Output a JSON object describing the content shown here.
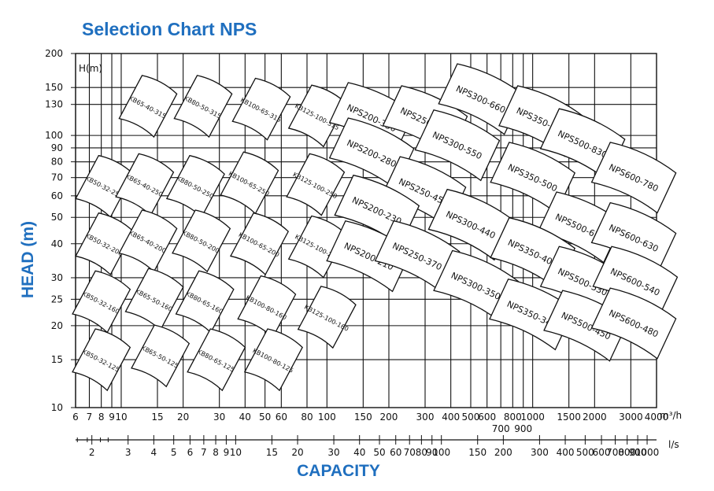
{
  "chart_data": {
    "type": "selection-chart",
    "title": "Selection Chart NPS",
    "ylabel": "HEAD (m)",
    "xlabel": "CAPACITY",
    "y_axis_unit_label": "H(m)",
    "x_unit_primary": "m³/h",
    "x_unit_secondary": "l/s",
    "y_scale": "log",
    "x_scale": "log",
    "ylim": [
      10,
      200
    ],
    "xlim_m3h": [
      6,
      4000
    ],
    "grid": true,
    "colors": {
      "title": "#1f6fbf",
      "lines": "#111111",
      "fill": "#ffffff"
    },
    "y_ticks": [
      {
        "label": "200",
        "value": 200
      },
      {
        "label": "150",
        "value": 150
      },
      {
        "label": "130",
        "value": 130
      },
      {
        "label": "100",
        "value": 100
      },
      {
        "label": "90",
        "value": 90
      },
      {
        "label": "80",
        "value": 80
      },
      {
        "label": "70",
        "value": 70
      },
      {
        "label": "60",
        "value": 60
      },
      {
        "label": "50",
        "value": 50
      },
      {
        "label": "40",
        "value": 40
      },
      {
        "label": "30",
        "value": 30
      },
      {
        "label": "25",
        "value": 25
      },
      {
        "label": "20",
        "value": 20
      },
      {
        "label": "15",
        "value": 15
      },
      {
        "label": "10",
        "value": 10
      }
    ],
    "x_ticks_m3h": [
      {
        "label": "6",
        "value": 6
      },
      {
        "label": "7",
        "value": 7
      },
      {
        "label": "8",
        "value": 8
      },
      {
        "label": "9",
        "value": 9
      },
      {
        "label": "10",
        "value": 10
      },
      {
        "label": "15",
        "value": 15
      },
      {
        "label": "20",
        "value": 20
      },
      {
        "label": "30",
        "value": 30
      },
      {
        "label": "40",
        "value": 40
      },
      {
        "label": "50",
        "value": 50
      },
      {
        "label": "60",
        "value": 60
      },
      {
        "label": "80",
        "value": 80
      },
      {
        "label": "100",
        "value": 100
      },
      {
        "label": "150",
        "value": 150
      },
      {
        "label": "200",
        "value": 200
      },
      {
        "label": "300",
        "value": 300
      },
      {
        "label": "400",
        "value": 400
      },
      {
        "label": "500",
        "value": 500
      },
      {
        "label": "600",
        "value": 600
      },
      {
        "label": "700",
        "value": 700,
        "low": true
      },
      {
        "label": "800",
        "value": 800
      },
      {
        "label": "900",
        "value": 900,
        "low": true
      },
      {
        "label": "1000",
        "value": 1000
      },
      {
        "label": "1500",
        "value": 1500
      },
      {
        "label": "2000",
        "value": 2000
      },
      {
        "label": "3000",
        "value": 3000
      },
      {
        "label": "4000",
        "value": 4000
      }
    ],
    "x_ticks_ls": [
      {
        "label": "2",
        "value": 2
      },
      {
        "label": "3",
        "value": 3
      },
      {
        "label": "4",
        "value": 4
      },
      {
        "label": "5",
        "value": 5
      },
      {
        "label": "6",
        "value": 6
      },
      {
        "label": "7",
        "value": 7
      },
      {
        "label": "8",
        "value": 8
      },
      {
        "label": "9",
        "value": 9
      },
      {
        "label": "10",
        "value": 10
      },
      {
        "label": "15",
        "value": 15
      },
      {
        "label": "20",
        "value": 20
      },
      {
        "label": "30",
        "value": 30
      },
      {
        "label": "40",
        "value": 40
      },
      {
        "label": "50",
        "value": 50
      },
      {
        "label": "60",
        "value": 60
      },
      {
        "label": "70",
        "value": 70
      },
      {
        "label": "80",
        "value": 80
      },
      {
        "label": "90",
        "value": 90
      },
      {
        "label": "100",
        "value": 100
      },
      {
        "label": "150",
        "value": 150
      },
      {
        "label": "200",
        "value": 200
      },
      {
        "label": "300",
        "value": 300
      },
      {
        "label": "400",
        "value": 400
      },
      {
        "label": "500",
        "value": 500
      },
      {
        "label": "600",
        "value": 600
      },
      {
        "label": "700",
        "value": 700
      },
      {
        "label": "800",
        "value": 800
      },
      {
        "label": "900",
        "value": 900
      },
      {
        "label": "1000",
        "value": 1000
      }
    ],
    "regions": [
      {
        "label": "KB65-40-315",
        "q": 13.5,
        "h": 128
      },
      {
        "label": "KB80-50-315",
        "q": 25,
        "h": 128
      },
      {
        "label": "KB100-65-315",
        "q": 48,
        "h": 125
      },
      {
        "label": "KB125-100-315",
        "q": 90,
        "h": 118
      },
      {
        "label": "NPS200-350",
        "q": 165,
        "h": 116
      },
      {
        "label": "NPS250-590",
        "q": 300,
        "h": 113
      },
      {
        "label": "NPS300-660",
        "q": 560,
        "h": 136
      },
      {
        "label": "NPS350-650",
        "q": 1100,
        "h": 113
      },
      {
        "label": "NPS500-830",
        "q": 1750,
        "h": 93
      },
      {
        "label": "NPS600-780",
        "q": 3100,
        "h": 70
      },
      {
        "label": "KB50-32-250",
        "q": 8.3,
        "h": 65
      },
      {
        "label": "KB65-40-250",
        "q": 13,
        "h": 66
      },
      {
        "label": "KB80-50-250",
        "q": 23,
        "h": 65
      },
      {
        "label": "KB100-65-250",
        "q": 42,
        "h": 67
      },
      {
        "label": "KB125-100-250",
        "q": 88,
        "h": 66
      },
      {
        "label": "NPS200-280",
        "q": 165,
        "h": 86
      },
      {
        "label": "NPS300-550",
        "q": 430,
        "h": 92
      },
      {
        "label": "NPS250-450",
        "q": 295,
        "h": 62
      },
      {
        "label": "NPS350-500",
        "q": 1000,
        "h": 70
      },
      {
        "label": "NPS200-230",
        "q": 175,
        "h": 53
      },
      {
        "label": "NPS300-440",
        "q": 500,
        "h": 47
      },
      {
        "label": "NPS500-670",
        "q": 1700,
        "h": 46
      },
      {
        "label": "NPS600-630",
        "q": 3100,
        "h": 42
      },
      {
        "label": "KB50-32-200",
        "q": 8.3,
        "h": 40
      },
      {
        "label": "KB65-40-200",
        "q": 13.5,
        "h": 41
      },
      {
        "label": "KB80-50-200",
        "q": 24.5,
        "h": 41
      },
      {
        "label": "KB100-65-200",
        "q": 47,
        "h": 40
      },
      {
        "label": "KB125-100-200",
        "q": 90,
        "h": 39
      },
      {
        "label": "NPS200-210",
        "q": 160,
        "h": 36
      },
      {
        "label": "NPS250-370",
        "q": 275,
        "h": 36
      },
      {
        "label": "NPS350-400",
        "q": 1000,
        "h": 37
      },
      {
        "label": "NPS500-530",
        "q": 1750,
        "h": 29
      },
      {
        "label": "NPS600-540",
        "q": 3150,
        "h": 29
      },
      {
        "label": "NPS300-350",
        "q": 530,
        "h": 28
      },
      {
        "label": "NPS350-340",
        "q": 990,
        "h": 22
      },
      {
        "label": "NPS500-450",
        "q": 1820,
        "h": 20
      },
      {
        "label": "NPS600-480",
        "q": 3100,
        "h": 20.4
      },
      {
        "label": "KB50-32-160",
        "q": 8,
        "h": 24.5
      },
      {
        "label": "KB65-50-160",
        "q": 14.5,
        "h": 25
      },
      {
        "label": "KB80-65-160",
        "q": 25.5,
        "h": 24.5
      },
      {
        "label": "KB100-80-160",
        "q": 51,
        "h": 23.5
      },
      {
        "label": "KB125-100-160",
        "q": 100,
        "h": 21.5
      },
      {
        "label": "KB50-32-125",
        "q": 8,
        "h": 15
      },
      {
        "label": "KB65-50-125",
        "q": 15.5,
        "h": 15.5
      },
      {
        "label": "KB80-65-125",
        "q": 29,
        "h": 15
      },
      {
        "label": "KB100-80-125",
        "q": 55,
        "h": 15
      }
    ]
  }
}
